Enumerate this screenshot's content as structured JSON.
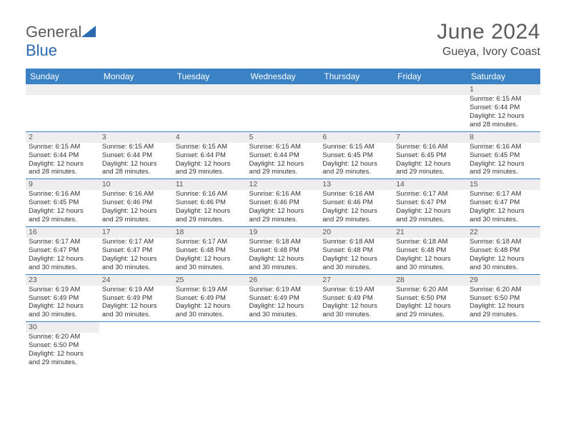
{
  "brand": {
    "part1": "General",
    "part2": "Blue"
  },
  "title": "June 2024",
  "location": "Gueya, Ivory Coast",
  "colors": {
    "header_bg": "#3b82c4",
    "header_fg": "#ffffff",
    "daynum_bg": "#eeeeee",
    "rule": "#3b82c4",
    "title_color": "#5a5a5a",
    "text_color": "#333333"
  },
  "day_headers": [
    "Sunday",
    "Monday",
    "Tuesday",
    "Wednesday",
    "Thursday",
    "Friday",
    "Saturday"
  ],
  "weeks": [
    [
      null,
      null,
      null,
      null,
      null,
      null,
      {
        "n": "1",
        "sunrise": "6:15 AM",
        "sunset": "6:44 PM",
        "daylight": "12 hours and 28 minutes."
      }
    ],
    [
      {
        "n": "2",
        "sunrise": "6:15 AM",
        "sunset": "6:44 PM",
        "daylight": "12 hours and 28 minutes."
      },
      {
        "n": "3",
        "sunrise": "6:15 AM",
        "sunset": "6:44 PM",
        "daylight": "12 hours and 28 minutes."
      },
      {
        "n": "4",
        "sunrise": "6:15 AM",
        "sunset": "6:44 PM",
        "daylight": "12 hours and 29 minutes."
      },
      {
        "n": "5",
        "sunrise": "6:15 AM",
        "sunset": "6:44 PM",
        "daylight": "12 hours and 29 minutes."
      },
      {
        "n": "6",
        "sunrise": "6:15 AM",
        "sunset": "6:45 PM",
        "daylight": "12 hours and 29 minutes."
      },
      {
        "n": "7",
        "sunrise": "6:16 AM",
        "sunset": "6:45 PM",
        "daylight": "12 hours and 29 minutes."
      },
      {
        "n": "8",
        "sunrise": "6:16 AM",
        "sunset": "6:45 PM",
        "daylight": "12 hours and 29 minutes."
      }
    ],
    [
      {
        "n": "9",
        "sunrise": "6:16 AM",
        "sunset": "6:45 PM",
        "daylight": "12 hours and 29 minutes."
      },
      {
        "n": "10",
        "sunrise": "6:16 AM",
        "sunset": "6:46 PM",
        "daylight": "12 hours and 29 minutes."
      },
      {
        "n": "11",
        "sunrise": "6:16 AM",
        "sunset": "6:46 PM",
        "daylight": "12 hours and 29 minutes."
      },
      {
        "n": "12",
        "sunrise": "6:16 AM",
        "sunset": "6:46 PM",
        "daylight": "12 hours and 29 minutes."
      },
      {
        "n": "13",
        "sunrise": "6:16 AM",
        "sunset": "6:46 PM",
        "daylight": "12 hours and 29 minutes."
      },
      {
        "n": "14",
        "sunrise": "6:17 AM",
        "sunset": "6:47 PM",
        "daylight": "12 hours and 29 minutes."
      },
      {
        "n": "15",
        "sunrise": "6:17 AM",
        "sunset": "6:47 PM",
        "daylight": "12 hours and 30 minutes."
      }
    ],
    [
      {
        "n": "16",
        "sunrise": "6:17 AM",
        "sunset": "6:47 PM",
        "daylight": "12 hours and 30 minutes."
      },
      {
        "n": "17",
        "sunrise": "6:17 AM",
        "sunset": "6:47 PM",
        "daylight": "12 hours and 30 minutes."
      },
      {
        "n": "18",
        "sunrise": "6:17 AM",
        "sunset": "6:48 PM",
        "daylight": "12 hours and 30 minutes."
      },
      {
        "n": "19",
        "sunrise": "6:18 AM",
        "sunset": "6:48 PM",
        "daylight": "12 hours and 30 minutes."
      },
      {
        "n": "20",
        "sunrise": "6:18 AM",
        "sunset": "6:48 PM",
        "daylight": "12 hours and 30 minutes."
      },
      {
        "n": "21",
        "sunrise": "6:18 AM",
        "sunset": "6:48 PM",
        "daylight": "12 hours and 30 minutes."
      },
      {
        "n": "22",
        "sunrise": "6:18 AM",
        "sunset": "6:48 PM",
        "daylight": "12 hours and 30 minutes."
      }
    ],
    [
      {
        "n": "23",
        "sunrise": "6:19 AM",
        "sunset": "6:49 PM",
        "daylight": "12 hours and 30 minutes."
      },
      {
        "n": "24",
        "sunrise": "6:19 AM",
        "sunset": "6:49 PM",
        "daylight": "12 hours and 30 minutes."
      },
      {
        "n": "25",
        "sunrise": "6:19 AM",
        "sunset": "6:49 PM",
        "daylight": "12 hours and 30 minutes."
      },
      {
        "n": "26",
        "sunrise": "6:19 AM",
        "sunset": "6:49 PM",
        "daylight": "12 hours and 30 minutes."
      },
      {
        "n": "27",
        "sunrise": "6:19 AM",
        "sunset": "6:49 PM",
        "daylight": "12 hours and 30 minutes."
      },
      {
        "n": "28",
        "sunrise": "6:20 AM",
        "sunset": "6:50 PM",
        "daylight": "12 hours and 29 minutes."
      },
      {
        "n": "29",
        "sunrise": "6:20 AM",
        "sunset": "6:50 PM",
        "daylight": "12 hours and 29 minutes."
      }
    ],
    [
      {
        "n": "30",
        "sunrise": "6:20 AM",
        "sunset": "6:50 PM",
        "daylight": "12 hours and 29 minutes."
      },
      null,
      null,
      null,
      null,
      null,
      null
    ]
  ],
  "labels": {
    "sunrise": "Sunrise:",
    "sunset": "Sunset:",
    "daylight": "Daylight:"
  }
}
